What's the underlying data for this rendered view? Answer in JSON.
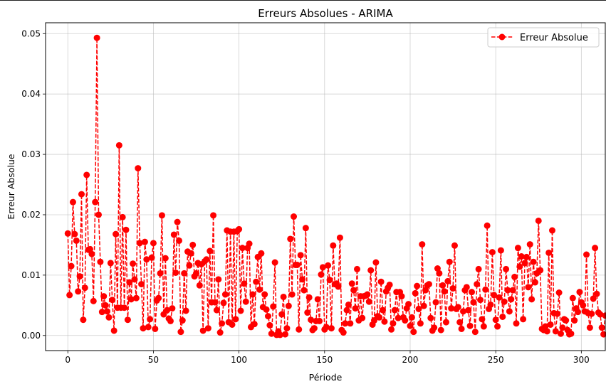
{
  "chart_data": {
    "type": "line",
    "title": "Erreurs Absolues - ARIMA",
    "xlabel": "Période",
    "ylabel": "Erreur Absolue",
    "xlim": [
      -13,
      314
    ],
    "ylim": [
      -0.0025,
      0.0518
    ],
    "xticks": [
      0,
      50,
      100,
      150,
      200,
      250,
      300
    ],
    "xtick_labels": [
      "0",
      "50",
      "100",
      "150",
      "200",
      "250",
      "300"
    ],
    "yticks": [
      0.0,
      0.01,
      0.02,
      0.03,
      0.04,
      0.05
    ],
    "ytick_labels": [
      "0.00",
      "0.01",
      "0.02",
      "0.03",
      "0.04",
      "0.05"
    ],
    "grid": true,
    "legend_position": "top-right",
    "series": [
      {
        "name": "Erreur Absolue",
        "color": "#ff0000",
        "line_style": "dashed",
        "marker": "circle",
        "x_start": 0,
        "x_step": 1,
        "values": [
          0.0169,
          0.0067,
          0.0115,
          0.0221,
          0.0168,
          0.0157,
          0.0073,
          0.0098,
          0.0234,
          0.0026,
          0.0079,
          0.0266,
          0.0142,
          0.0143,
          0.0135,
          0.0057,
          0.0221,
          0.0493,
          0.02,
          0.0122,
          0.0039,
          0.0065,
          0.005,
          0.004,
          0.003,
          0.012,
          0.0059,
          0.0008,
          0.0168,
          0.0046,
          0.0315,
          0.0046,
          0.0196,
          0.0046,
          0.0175,
          0.0026,
          0.0088,
          0.006,
          0.0119,
          0.0093,
          0.0062,
          0.0277,
          0.0153,
          0.0085,
          0.0012,
          0.0155,
          0.0126,
          0.0014,
          0.0027,
          0.0129,
          0.0153,
          0.0011,
          0.0058,
          0.0062,
          0.0103,
          0.0199,
          0.0035,
          0.0128,
          0.0042,
          0.0028,
          0.0024,
          0.0045,
          0.0167,
          0.0104,
          0.0188,
          0.0157,
          0.0006,
          0.0025,
          0.0103,
          0.0041,
          0.0139,
          0.0116,
          0.0136,
          0.015,
          0.0098,
          0.0103,
          0.012,
          0.0083,
          0.0118,
          0.0008,
          0.0123,
          0.0126,
          0.0012,
          0.014,
          0.0055,
          0.0199,
          0.0055,
          0.0042,
          0.0093,
          0.0005,
          0.002,
          0.0054,
          0.0068,
          0.0174,
          0.0022,
          0.0172,
          0.0018,
          0.0172,
          0.0027,
          0.0173,
          0.0176,
          0.0041,
          0.0145,
          0.0086,
          0.0056,
          0.0145,
          0.0152,
          0.0014,
          0.0068,
          0.0019,
          0.0089,
          0.013,
          0.0076,
          0.0136,
          0.0047,
          0.0068,
          0.0043,
          0.0032,
          0.0017,
          0.0003,
          0.0048,
          0.0121,
          0.0001,
          0.0007,
          0.0001,
          0.0035,
          0.0064,
          0.0002,
          0.0012,
          0.0049,
          0.016,
          0.0068,
          0.0197,
          0.0117,
          0.0117,
          0.001,
          0.0133,
          0.0093,
          0.0075,
          0.0178,
          0.0038,
          0.0063,
          0.0026,
          0.0009,
          0.0012,
          0.0024,
          0.006,
          0.0024,
          0.0101,
          0.0113,
          0.001,
          0.0014,
          0.0116,
          0.0092,
          0.0012,
          0.0149,
          0.0085,
          0.0086,
          0.0081,
          0.0162,
          0.0009,
          0.0005,
          0.002,
          0.0042,
          0.0051,
          0.002,
          0.0086,
          0.0075,
          0.0045,
          0.011,
          0.0025,
          0.0065,
          0.0029,
          0.0065,
          0.0066,
          0.0068,
          0.0056,
          0.0108,
          0.0018,
          0.0025,
          0.0121,
          0.0032,
          0.003,
          0.0089,
          0.0042,
          0.0023,
          0.0073,
          0.0079,
          0.0084,
          0.001,
          0.002,
          0.0042,
          0.0072,
          0.0029,
          0.0072,
          0.0065,
          0.003,
          0.0025,
          0.0045,
          0.0052,
          0.0016,
          0.003,
          0.0006,
          0.007,
          0.0082,
          0.0044,
          0.002,
          0.0151,
          0.0049,
          0.0075,
          0.0083,
          0.0085,
          0.0029,
          0.0008,
          0.0013,
          0.0055,
          0.0111,
          0.0103,
          0.0009,
          0.0083,
          0.0073,
          0.0022,
          0.009,
          0.0122,
          0.0045,
          0.0078,
          0.0149,
          0.0044,
          0.0047,
          0.0022,
          0.0011,
          0.004,
          0.0075,
          0.008,
          0.0042,
          0.0016,
          0.0072,
          0.0055,
          0.0006,
          0.0085,
          0.011,
          0.0059,
          0.0027,
          0.0015,
          0.0076,
          0.0182,
          0.0044,
          0.0051,
          0.0138,
          0.0067,
          0.0026,
          0.0015,
          0.0063,
          0.0141,
          0.0031,
          0.0056,
          0.011,
          0.0075,
          0.004,
          0.006,
          0.0075,
          0.0097,
          0.002,
          0.0145,
          0.0114,
          0.0131,
          0.0027,
          0.012,
          0.013,
          0.008,
          0.0151,
          0.006,
          0.0122,
          0.0088,
          0.0103,
          0.019,
          0.0108,
          0.0011,
          0.0009,
          0.0015,
          0.0007,
          0.0137,
          0.0018,
          0.0174,
          0.0037,
          0.0007,
          0.0036,
          0.0071,
          0.0003,
          0.0013,
          0.0027,
          0.0025,
          0.0009,
          0.0002,
          0.0003,
          0.0062,
          0.0025,
          0.0045,
          0.0039,
          0.0072,
          0.0055,
          0.005,
          0.004,
          0.0134,
          0.0037,
          0.0013,
          0.0036,
          0.0061,
          0.0145,
          0.0069,
          0.0038,
          0.0035,
          0.0013,
          0.0002,
          0.0033
        ]
      }
    ]
  }
}
